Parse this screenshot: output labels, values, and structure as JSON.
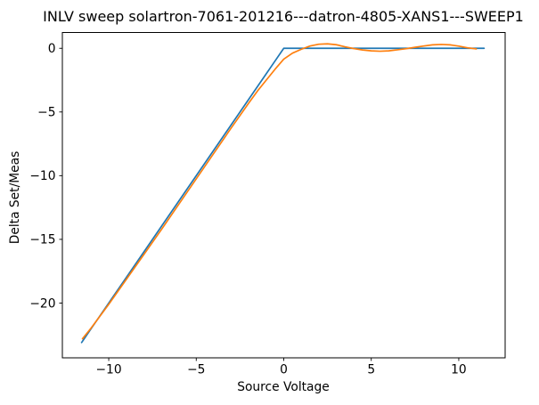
{
  "chart_data": {
    "type": "line",
    "title": "INLV sweep solartron-7061-201216---datron-4805-XANS1---SWEEP1",
    "xlabel": "Source Voltage",
    "ylabel": "Delta Set/Meas",
    "xlim": [
      -12.65,
      12.65
    ],
    "ylim": [
      -24.3,
      1.24
    ],
    "xticks": [
      -10,
      -5,
      0,
      5,
      10
    ],
    "xtick_labels": [
      "−10",
      "−5",
      "0",
      "5",
      "10"
    ],
    "yticks": [
      0,
      -5,
      -10,
      -15,
      -20
    ],
    "ytick_labels": [
      "0",
      "−5",
      "−10",
      "−15",
      "−20"
    ],
    "grid": false,
    "legend": null,
    "background": "#ffffff",
    "series": [
      {
        "color": "#1f77b4",
        "x": [
          -11.55,
          -11,
          -10,
          -9,
          -8,
          -7,
          -6,
          -5,
          -4,
          -3,
          -2,
          -1,
          -0.5,
          0,
          1,
          2,
          3,
          4,
          5,
          6,
          7,
          8,
          9,
          10,
          11,
          11.45
        ],
        "y": [
          -23.1,
          -22,
          -20,
          -18,
          -16,
          -14,
          -12,
          -10,
          -8,
          -6,
          -4,
          -2,
          -1,
          0,
          0,
          0,
          0,
          0,
          0,
          0,
          0,
          0,
          0,
          0,
          0,
          0
        ]
      },
      {
        "color": "#ff7f0e",
        "x": [
          -11.5,
          -11,
          -10,
          -9,
          -8,
          -7,
          -6,
          -5,
          -4,
          -3,
          -2,
          -1.5,
          -1,
          -0.5,
          0,
          0.5,
          1,
          1.5,
          2,
          2.5,
          3,
          3.5,
          4,
          4.5,
          5,
          5.5,
          6,
          6.5,
          7,
          7.5,
          8,
          8.5,
          9,
          9.5,
          10,
          10.5,
          11
        ],
        "y": [
          -22.8,
          -21.95,
          -20.1,
          -18.15,
          -16.2,
          -14.25,
          -12.25,
          -10.25,
          -8.25,
          -6.25,
          -4.3,
          -3.35,
          -2.5,
          -1.65,
          -0.85,
          -0.38,
          -0.08,
          0.18,
          0.32,
          0.35,
          0.28,
          0.12,
          -0.02,
          -0.13,
          -0.2,
          -0.23,
          -0.2,
          -0.12,
          -0.03,
          0.08,
          0.18,
          0.27,
          0.3,
          0.27,
          0.17,
          0.04,
          -0.05
        ]
      }
    ]
  },
  "colors": {
    "spine": "#000000",
    "tick": "#000000",
    "text": "#000000"
  }
}
